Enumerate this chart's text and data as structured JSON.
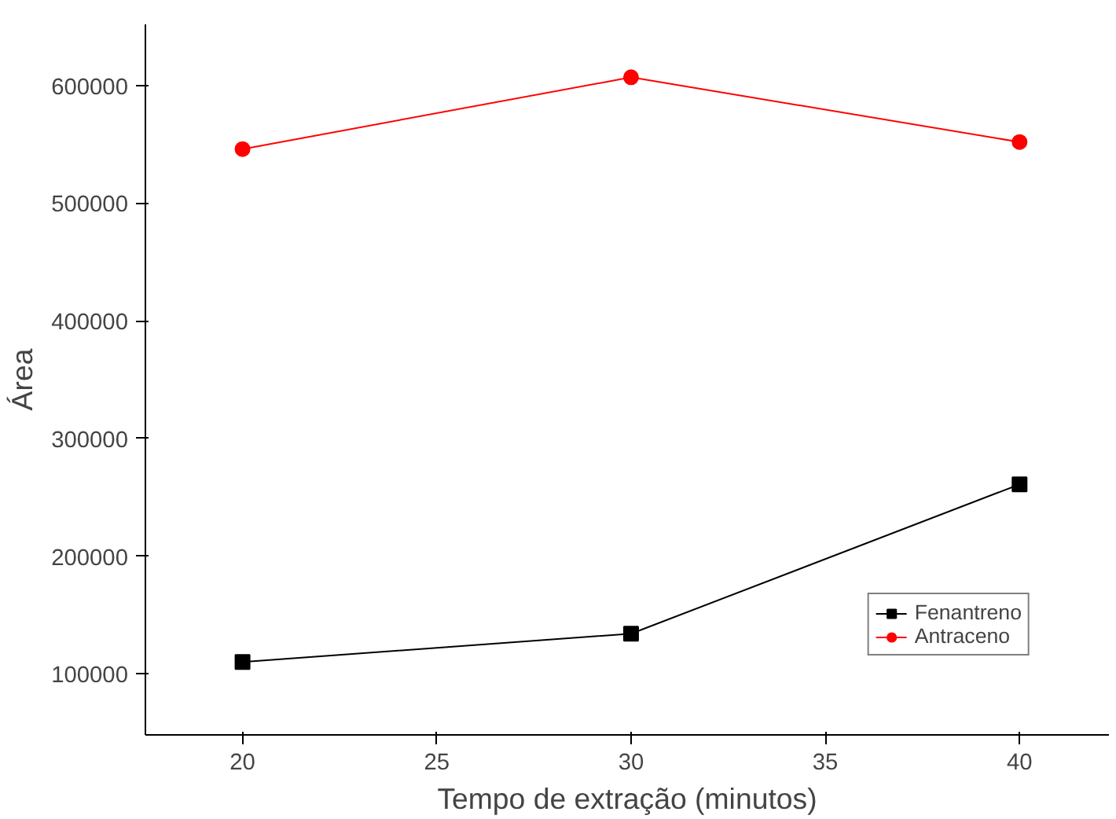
{
  "chart_data": {
    "type": "line",
    "xlabel": "Tempo de extração (minutos)",
    "ylabel": "Área",
    "x": [
      20,
      30,
      40
    ],
    "series": [
      {
        "name": "Fenantreno",
        "color": "#000000",
        "marker": "square",
        "values": [
          110000,
          134000,
          261000
        ]
      },
      {
        "name": "Antraceno",
        "color": "#ff0000",
        "marker": "circle",
        "values": [
          546000,
          607000,
          552000
        ]
      }
    ],
    "xlim": [
      17.5,
      42.3
    ],
    "xticks": [
      20,
      25,
      30,
      35,
      40
    ],
    "ylim": [
      48000,
      652000
    ],
    "yticks": [
      100000,
      200000,
      300000,
      400000,
      500000,
      600000
    ],
    "grid": false,
    "legend": "bottom right",
    "line_style": "solid"
  }
}
